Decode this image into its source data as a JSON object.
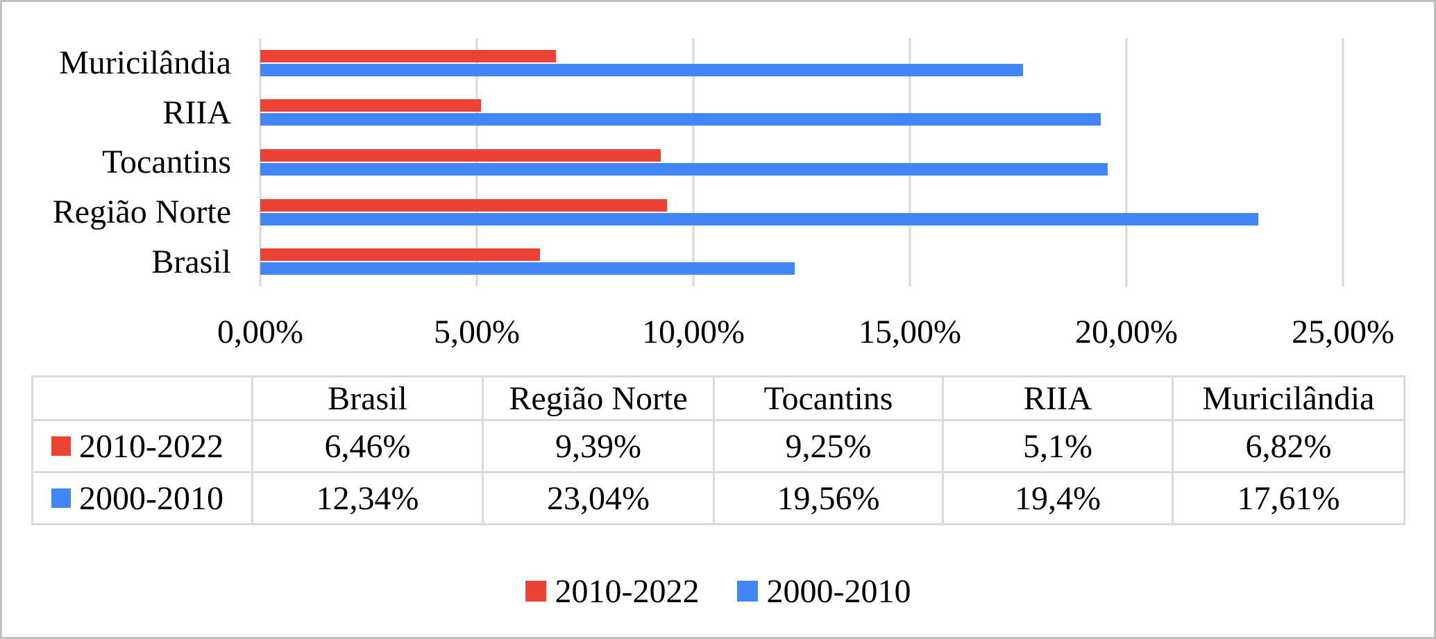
{
  "chart_data": {
    "type": "bar",
    "orientation": "horizontal",
    "categories": [
      "Brasil",
      "Região Norte",
      "Tocantins",
      "RIIA",
      "Muricilândia"
    ],
    "series": [
      {
        "name": "2010-2022",
        "color": "#ea4335",
        "values": [
          6.46,
          9.39,
          9.25,
          5.1,
          6.82
        ]
      },
      {
        "name": "2000-2010",
        "color": "#4285f4",
        "values": [
          12.34,
          23.04,
          19.56,
          19.4,
          17.61
        ]
      }
    ],
    "xlim": [
      0,
      25
    ],
    "x_ticks": [
      {
        "label": "0,00%",
        "value": 0
      },
      {
        "label": "5,00%",
        "value": 5
      },
      {
        "label": "10,00%",
        "value": 10
      },
      {
        "label": "15,00%",
        "value": 15
      },
      {
        "label": "20,00%",
        "value": 20
      },
      {
        "label": "25,00%",
        "value": 25
      }
    ],
    "gridlines": true,
    "legend_position": "bottom",
    "category_axis_order": "reversed-top-is-last",
    "grid_color": "#d9d9d9"
  },
  "table": {
    "corner": "",
    "columns": [
      "Brasil",
      "Região Norte",
      "Tocantins",
      "RIIA",
      "Muricilândia"
    ],
    "rows": [
      {
        "label": "2010-2022",
        "values": [
          "6,46%",
          "9,39%",
          "9,25%",
          "5,1%",
          "6,82%"
        ]
      },
      {
        "label": "2000-2010",
        "values": [
          "12,34%",
          "23,04%",
          "19,56%",
          "19,4%",
          "17,61%"
        ]
      }
    ]
  }
}
